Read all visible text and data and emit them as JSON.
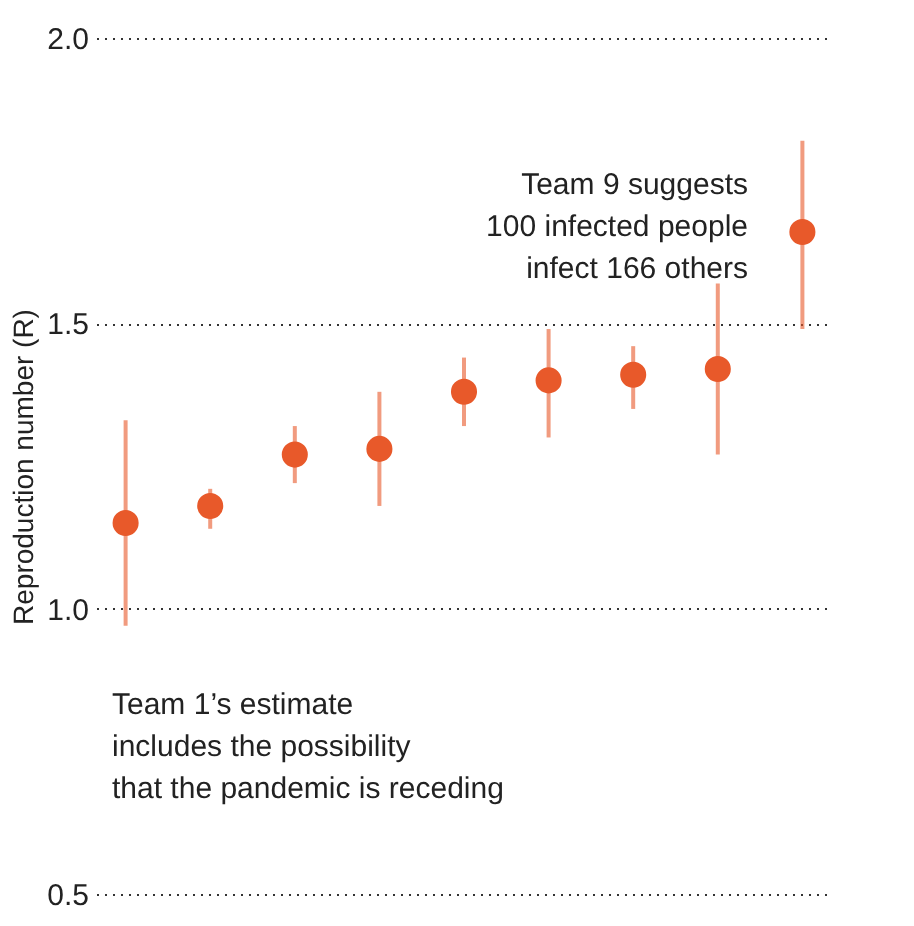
{
  "chart_data": {
    "type": "scatter",
    "ylabel": "Reproduction number (R)",
    "categories": [
      null,
      null,
      null,
      null,
      null,
      null,
      null,
      null,
      null
    ],
    "series": [
      {
        "color": "#e8592a",
        "values": [
          1.15,
          1.18,
          1.27,
          1.28,
          1.38,
          1.4,
          1.41,
          1.42,
          1.66
        ],
        "errors": [
          [
            0.97,
            1.33
          ],
          [
            1.14,
            1.21
          ],
          [
            1.22,
            1.32
          ],
          [
            1.18,
            1.38
          ],
          [
            1.32,
            1.44
          ],
          [
            1.3,
            1.49
          ],
          [
            1.35,
            1.46
          ],
          [
            1.27,
            1.57
          ],
          [
            1.49,
            1.82
          ]
        ]
      }
    ],
    "ylim": [
      0.5,
      2.0
    ],
    "yticks": [
      {
        "value": 0.5,
        "label": "0.5"
      },
      {
        "value": 1.0,
        "label": "1.0"
      },
      {
        "value": 1.5,
        "label": "1.5"
      },
      {
        "value": 2.0,
        "label": "2.0"
      }
    ],
    "grid": "y",
    "marker": "circle",
    "annotations": [
      "Team 9 suggests\n100 infected people\ninfect 166 others",
      "Team 1’s estimate\nincludes the possibility\nthat the pandemic is receding"
    ]
  }
}
